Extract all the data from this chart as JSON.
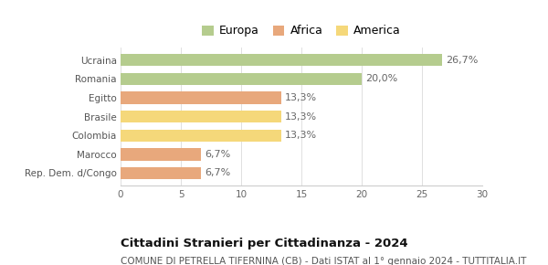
{
  "categories": [
    "Rep. Dem. d/Congo",
    "Marocco",
    "Colombia",
    "Brasile",
    "Egitto",
    "Romania",
    "Ucraina"
  ],
  "values": [
    6.7,
    6.7,
    13.3,
    13.3,
    13.3,
    20.0,
    26.7
  ],
  "labels": [
    "6,7%",
    "6,7%",
    "13,3%",
    "13,3%",
    "13,3%",
    "20,0%",
    "26,7%"
  ],
  "colors": [
    "#e8a87c",
    "#e8a87c",
    "#f5d87a",
    "#f5d87a",
    "#e8a87c",
    "#b5cc8e",
    "#b5cc8e"
  ],
  "legend": [
    {
      "label": "Europa",
      "color": "#b5cc8e"
    },
    {
      "label": "Africa",
      "color": "#e8a87c"
    },
    {
      "label": "America",
      "color": "#f5d87a"
    }
  ],
  "xlim": [
    0,
    30
  ],
  "xticks": [
    0,
    5,
    10,
    15,
    20,
    25,
    30
  ],
  "title": "Cittadini Stranieri per Cittadinanza - 2024",
  "subtitle": "COMUNE DI PETRELLA TIFERNINA (CB) - Dati ISTAT al 1° gennaio 2024 - TUTTITALIA.IT",
  "background_color": "#ffffff",
  "bar_height": 0.65,
  "title_fontsize": 9.5,
  "subtitle_fontsize": 7.5,
  "label_fontsize": 8,
  "tick_fontsize": 7.5,
  "legend_fontsize": 9
}
